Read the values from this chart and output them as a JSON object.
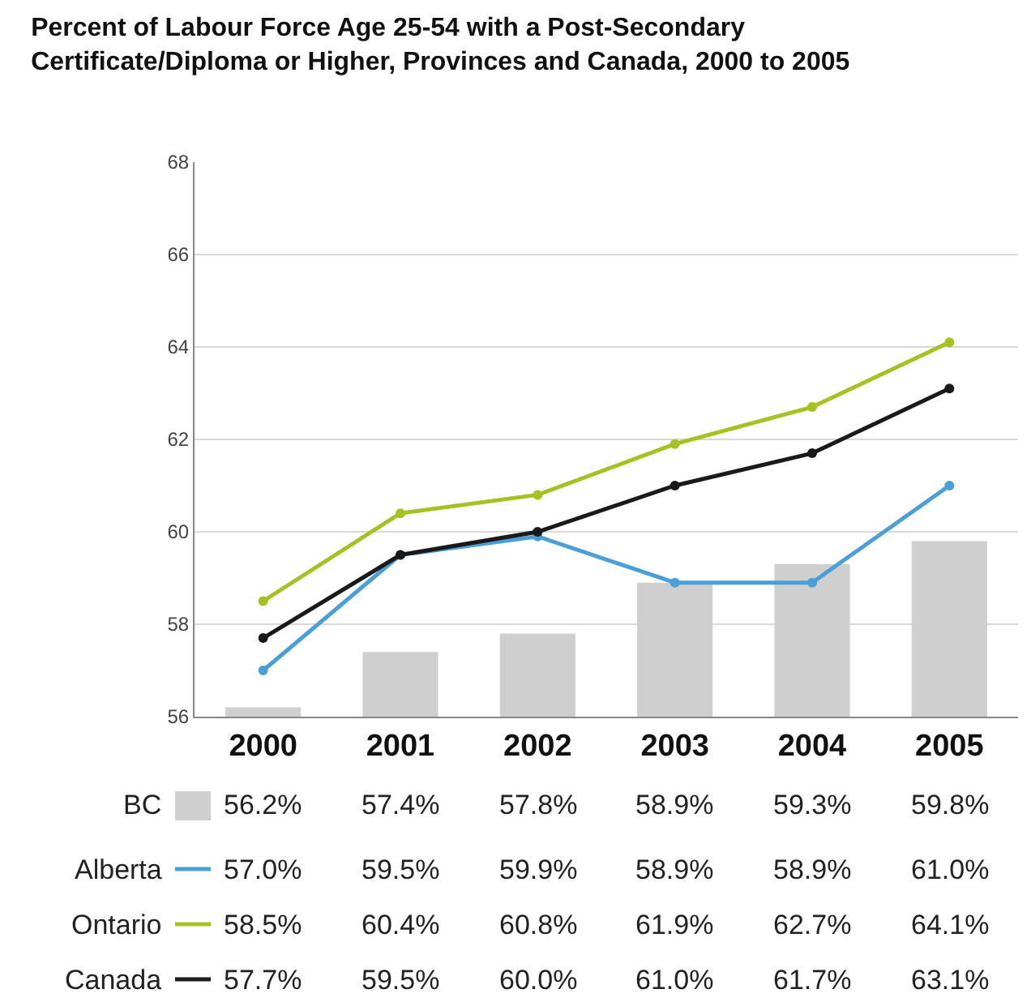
{
  "chart_data": {
    "type": "line",
    "title": "Percent of Labour Force Age 25-54 with a Post-Secondary\nCertificate/Diploma or Higher, Provinces and Canada, 2000 to 2005",
    "categories": [
      "2000",
      "2001",
      "2002",
      "2003",
      "2004",
      "2005"
    ],
    "series": [
      {
        "name": "BC",
        "type": "bar",
        "color": "#cfcfcf",
        "values": [
          56.2,
          57.4,
          57.8,
          58.9,
          59.3,
          59.8
        ],
        "value_labels": [
          "56.2%",
          "57.4%",
          "57.8%",
          "58.9%",
          "59.3%",
          "59.8%"
        ]
      },
      {
        "name": "Alberta",
        "color": "#4a9fd8",
        "values": [
          57.0,
          59.5,
          59.9,
          58.9,
          58.9,
          61.0
        ],
        "value_labels": [
          "57.0%",
          "59.5%",
          "59.9%",
          "58.9%",
          "58.9%",
          "61.0%"
        ]
      },
      {
        "name": "Ontario",
        "color": "#a4c222",
        "values": [
          58.5,
          60.4,
          60.8,
          61.9,
          62.7,
          64.1
        ],
        "value_labels": [
          "58.5%",
          "60.4%",
          "60.8%",
          "61.9%",
          "62.7%",
          "64.1%"
        ]
      },
      {
        "name": "Canada",
        "color": "#1a1a1a",
        "values": [
          57.7,
          59.5,
          60.0,
          61.0,
          61.7,
          63.1
        ],
        "value_labels": [
          "57.7%",
          "59.5%",
          "60.0%",
          "61.0%",
          "61.7%",
          "63.1%"
        ]
      }
    ],
    "ylim": [
      56,
      68
    ],
    "yticks": [
      56,
      58,
      60,
      62,
      64,
      66,
      68
    ],
    "grid": "y",
    "legend": "left",
    "marker": "circle",
    "line_style": "solid"
  }
}
